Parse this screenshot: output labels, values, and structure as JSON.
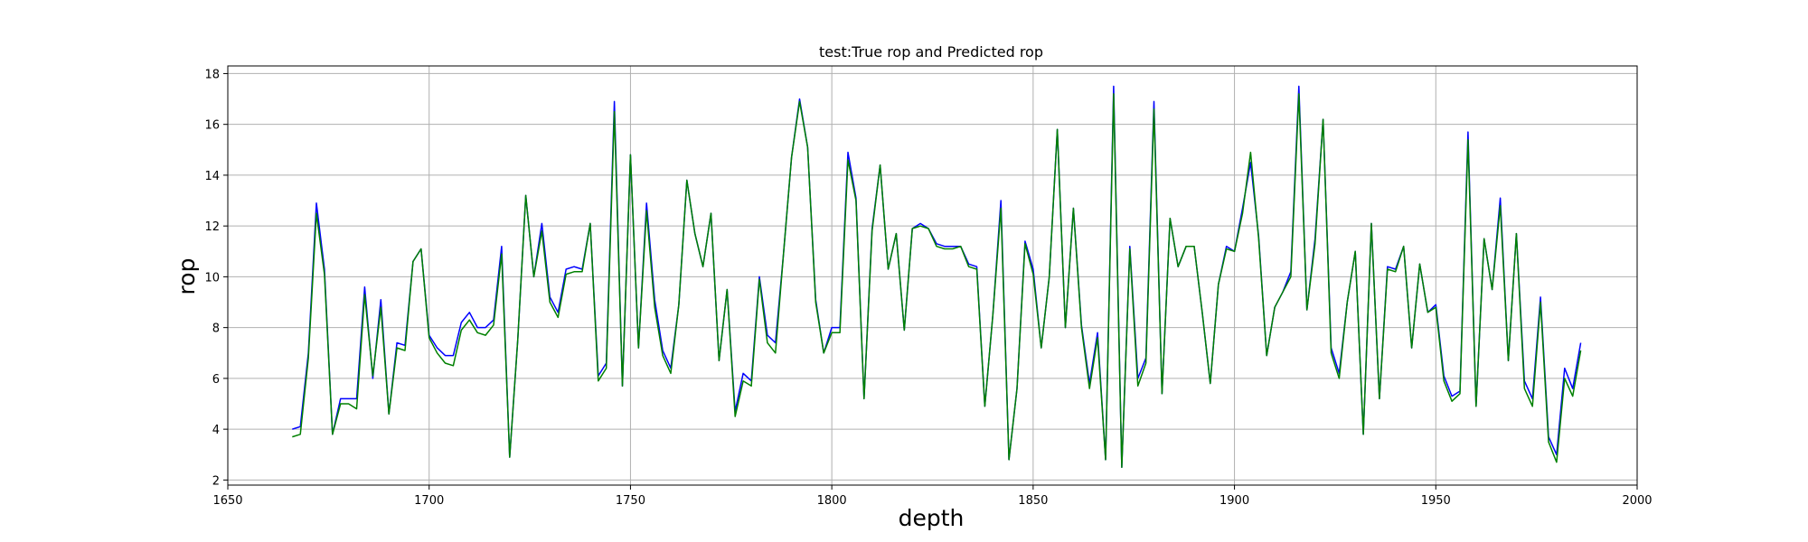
{
  "chart_data": {
    "type": "line",
    "title": "test:True rop and Predicted rop",
    "xlabel": "depth",
    "ylabel": "rop",
    "xlim": [
      1650,
      2000
    ],
    "ylim": [
      1.8,
      18.3
    ],
    "xticks": [
      1650,
      1700,
      1750,
      1800,
      1850,
      1900,
      1950,
      2000
    ],
    "yticks": [
      2,
      4,
      6,
      8,
      10,
      12,
      14,
      16,
      18
    ],
    "grid": true,
    "legend": "none",
    "x": [
      1666,
      1668,
      1670,
      1672,
      1674,
      1676,
      1678,
      1680,
      1682,
      1684,
      1686,
      1688,
      1690,
      1692,
      1694,
      1696,
      1698,
      1700,
      1702,
      1704,
      1706,
      1708,
      1710,
      1712,
      1714,
      1716,
      1718,
      1720,
      1722,
      1724,
      1726,
      1728,
      1730,
      1732,
      1734,
      1736,
      1738,
      1740,
      1742,
      1744,
      1746,
      1748,
      1750,
      1752,
      1754,
      1756,
      1758,
      1760,
      1762,
      1764,
      1766,
      1768,
      1770,
      1772,
      1774,
      1776,
      1778,
      1780,
      1782,
      1784,
      1786,
      1788,
      1790,
      1792,
      1794,
      1796,
      1798,
      1800,
      1802,
      1804,
      1806,
      1808,
      1810,
      1812,
      1814,
      1816,
      1818,
      1820,
      1822,
      1824,
      1826,
      1828,
      1830,
      1832,
      1834,
      1836,
      1838,
      1840,
      1842,
      1844,
      1846,
      1848,
      1850,
      1852,
      1854,
      1856,
      1858,
      1860,
      1862,
      1864,
      1866,
      1868,
      1870,
      1872,
      1874,
      1876,
      1878,
      1880,
      1882,
      1884,
      1886,
      1888,
      1890,
      1892,
      1894,
      1896,
      1898,
      1900,
      1902,
      1904,
      1906,
      1908,
      1910,
      1912,
      1914,
      1916,
      1918,
      1920,
      1922,
      1924,
      1926,
      1928,
      1930,
      1932,
      1934,
      1936,
      1938,
      1940,
      1942,
      1944,
      1946,
      1948,
      1950,
      1952,
      1954,
      1956,
      1958,
      1960,
      1962,
      1964,
      1966,
      1968,
      1970,
      1972,
      1974,
      1976,
      1978,
      1980,
      1982,
      1984,
      1986
    ],
    "series": [
      {
        "color": "#0000ff",
        "values": [
          4.0,
          4.1,
          7.0,
          12.9,
          10.3,
          3.8,
          5.2,
          5.2,
          5.2,
          9.6,
          6.0,
          9.1,
          4.6,
          7.4,
          7.3,
          10.6,
          11.1,
          7.7,
          7.2,
          6.9,
          6.9,
          8.2,
          8.6,
          8.0,
          8.0,
          8.3,
          11.2,
          2.9,
          7.5,
          13.2,
          10.0,
          12.1,
          9.2,
          8.6,
          10.3,
          10.4,
          10.3,
          12.1,
          6.1,
          6.6,
          16.9,
          5.7,
          14.8,
          7.2,
          12.9,
          9.1,
          7.1,
          6.4,
          8.9,
          13.8,
          11.7,
          10.4,
          12.5,
          6.7,
          9.5,
          4.7,
          6.2,
          5.9,
          10.0,
          7.7,
          7.4,
          10.9,
          14.7,
          17.0,
          15.1,
          9.1,
          7.0,
          8.0,
          8.0,
          14.9,
          13.1,
          5.2,
          11.9,
          14.4,
          10.3,
          11.7,
          7.9,
          11.9,
          12.1,
          11.9,
          11.3,
          11.2,
          11.2,
          11.2,
          10.5,
          10.4,
          4.9,
          8.5,
          13.0,
          2.8,
          5.6,
          11.4,
          10.3,
          7.2,
          10.0,
          15.8,
          8.0,
          12.7,
          8.1,
          5.8,
          7.8,
          2.8,
          17.5,
          2.5,
          11.2,
          6.0,
          6.8,
          16.9,
          5.4,
          12.3,
          10.4,
          11.2,
          11.2,
          8.6,
          5.8,
          9.7,
          11.2,
          11.0,
          12.7,
          14.5,
          11.6,
          6.9,
          8.8,
          9.4,
          10.2,
          17.5,
          8.7,
          11.5,
          16.2,
          7.2,
          6.2,
          9.0,
          11.0,
          3.8,
          12.1,
          5.2,
          10.4,
          10.3,
          11.2,
          7.2,
          10.5,
          8.6,
          8.9,
          6.1,
          5.3,
          5.5,
          15.7,
          4.9,
          11.5,
          9.5,
          13.1,
          6.7,
          11.7,
          5.9,
          5.2,
          9.2,
          3.7,
          3.0,
          6.4,
          5.6,
          7.4
        ]
      },
      {
        "color": "#008000",
        "values": [
          3.7,
          3.8,
          6.8,
          12.5,
          10.1,
          3.8,
          5.0,
          5.0,
          4.8,
          9.3,
          6.1,
          8.8,
          4.6,
          7.2,
          7.1,
          10.6,
          11.1,
          7.6,
          7.0,
          6.6,
          6.5,
          7.9,
          8.3,
          7.8,
          7.7,
          8.1,
          10.9,
          2.9,
          7.5,
          13.2,
          10.0,
          11.8,
          9.0,
          8.4,
          10.1,
          10.2,
          10.2,
          12.1,
          5.9,
          6.4,
          16.5,
          5.7,
          14.8,
          7.2,
          12.6,
          8.8,
          6.9,
          6.2,
          8.9,
          13.8,
          11.7,
          10.4,
          12.5,
          6.7,
          9.5,
          4.5,
          5.9,
          5.7,
          9.9,
          7.4,
          7.0,
          10.9,
          14.7,
          16.9,
          15.1,
          9.0,
          7.0,
          7.8,
          7.8,
          14.6,
          13.0,
          5.2,
          11.8,
          14.4,
          10.3,
          11.7,
          7.9,
          11.9,
          12.0,
          11.9,
          11.2,
          11.1,
          11.1,
          11.2,
          10.4,
          10.3,
          4.9,
          8.5,
          12.7,
          2.8,
          5.6,
          11.3,
          10.1,
          7.2,
          10.0,
          15.8,
          8.0,
          12.7,
          8.0,
          5.6,
          7.6,
          2.8,
          17.2,
          2.5,
          11.1,
          5.7,
          6.6,
          16.6,
          5.4,
          12.3,
          10.4,
          11.2,
          11.2,
          8.6,
          5.8,
          9.7,
          11.1,
          11.0,
          12.5,
          14.9,
          11.5,
          6.9,
          8.8,
          9.4,
          10.0,
          17.2,
          8.7,
          11.3,
          16.2,
          7.0,
          6.0,
          9.0,
          11.0,
          3.8,
          12.1,
          5.2,
          10.3,
          10.2,
          11.2,
          7.2,
          10.5,
          8.6,
          8.8,
          5.9,
          5.1,
          5.4,
          15.4,
          4.9,
          11.5,
          9.5,
          12.8,
          6.7,
          11.7,
          5.6,
          4.9,
          9.0,
          3.5,
          2.7,
          6.0,
          5.3,
          7.1
        ]
      }
    ]
  }
}
